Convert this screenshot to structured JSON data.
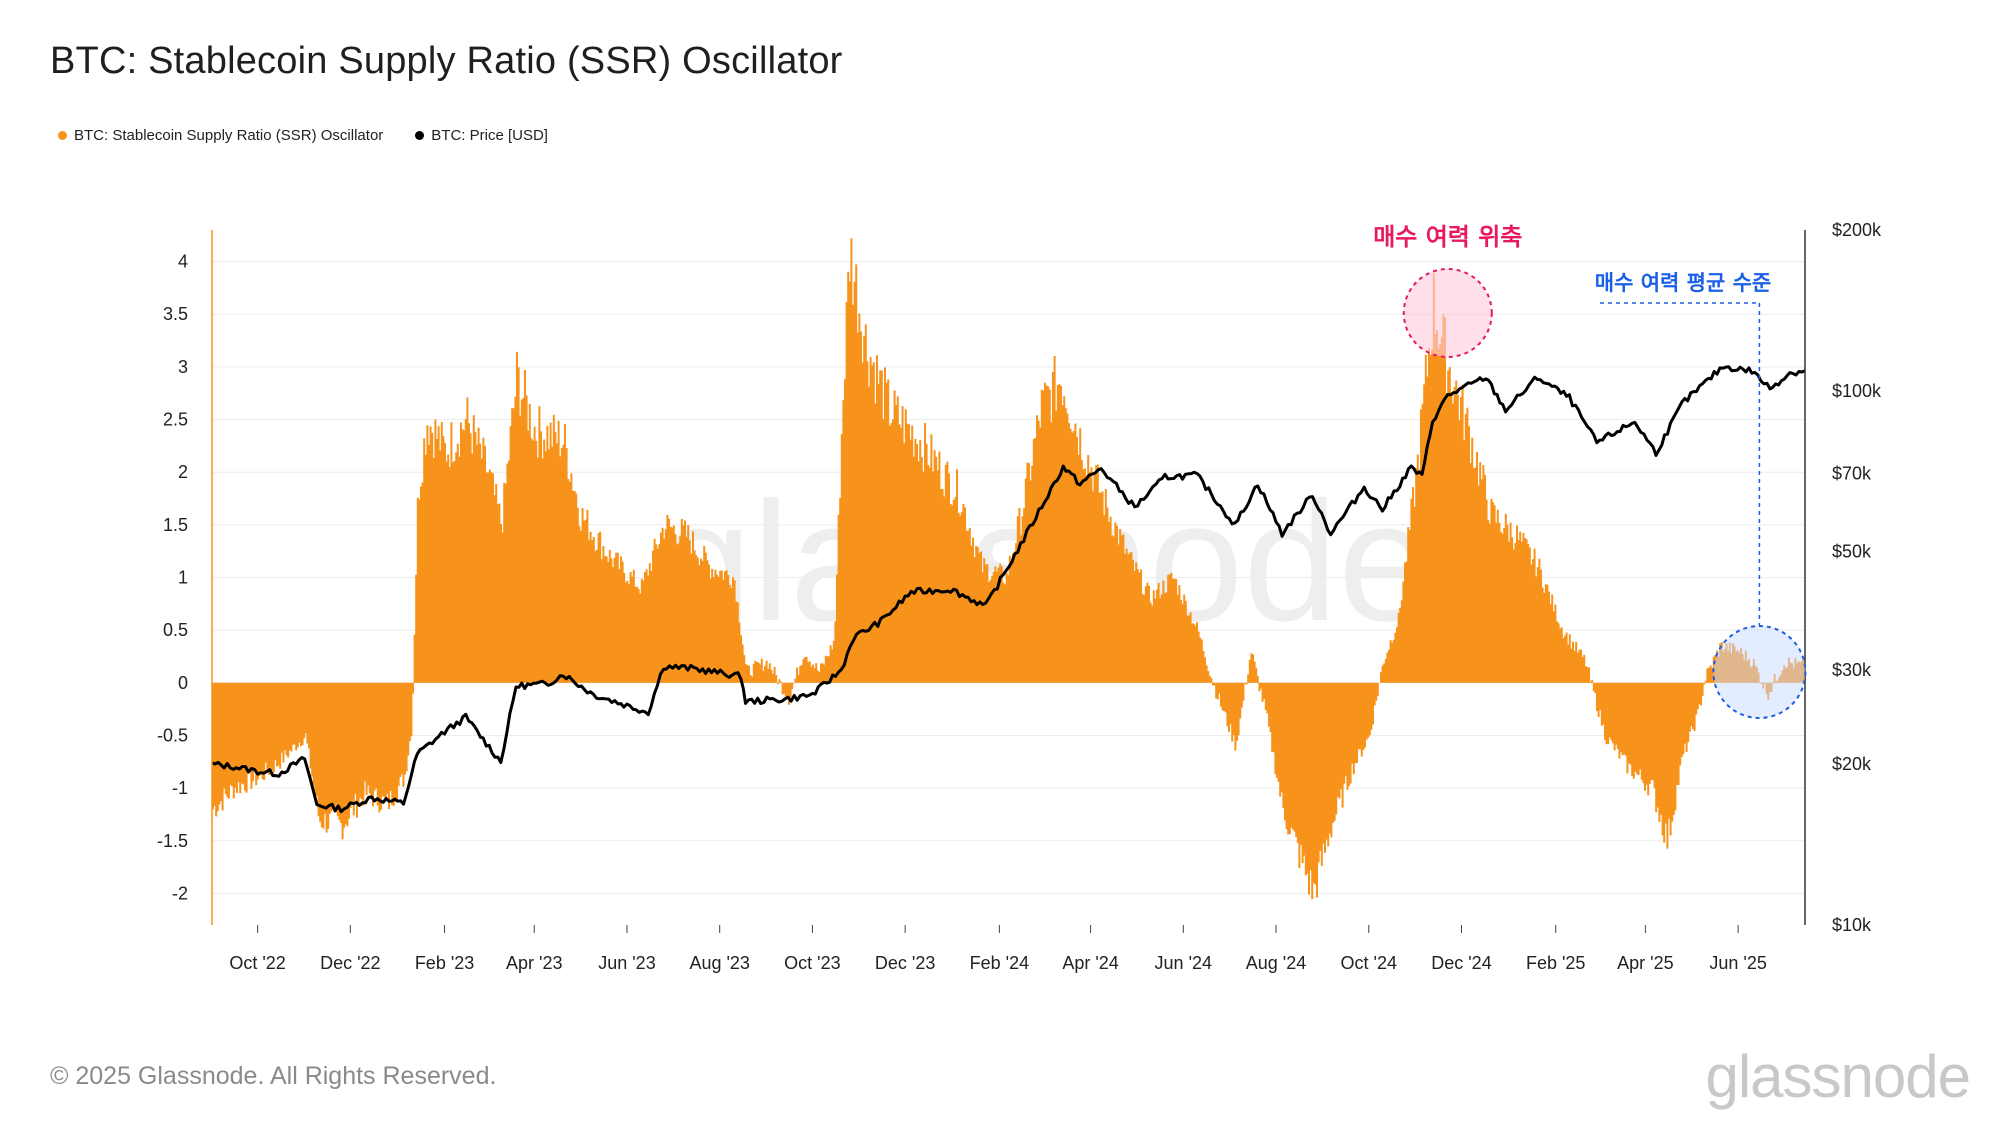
{
  "title": "BTC: Stablecoin Supply Ratio (SSR) Oscillator",
  "legend": [
    {
      "label": "BTC: Stablecoin Supply Ratio (SSR) Oscillator",
      "color": "#f7931a"
    },
    {
      "label": "BTC: Price [USD]",
      "color": "#000000"
    }
  ],
  "footer": "© 2025 Glassnode. All Rights Reserved.",
  "brand": "glassnode",
  "watermark": "glassnode",
  "chart_data": {
    "type": "area",
    "left_axis": {
      "ylim": [
        -2.3,
        4.3
      ],
      "ticks": [
        4,
        3.5,
        3,
        2.5,
        2,
        1.5,
        1,
        0.5,
        0,
        -0.5,
        -1,
        -1.5,
        -2
      ],
      "tick_labels": [
        "4",
        "3.5",
        "3",
        "2.5",
        "2",
        "1.5",
        "1",
        "0.5",
        "0",
        "-0.5",
        "-1",
        "-1.5",
        "-2"
      ]
    },
    "right_axis": {
      "scale": "log",
      "ylim": [
        10000,
        200000
      ],
      "ticks": [
        200000,
        100000,
        70000,
        50000,
        30000,
        20000,
        10000
      ],
      "tick_labels": [
        "$200k",
        "$100k",
        "$70k",
        "$50k",
        "$30k",
        "$20k",
        "$10k"
      ]
    },
    "x_axis": {
      "start": "2022-09-01",
      "end": "2025-07-15",
      "tick_labels": [
        "Oct '22",
        "Dec '22",
        "Feb '23",
        "Apr '23",
        "Jun '23",
        "Aug '23",
        "Oct '23",
        "Dec '23",
        "Feb '24",
        "Apr '24",
        "Jun '24",
        "Aug '24",
        "Oct '24",
        "Dec '24",
        "Feb '25",
        "Apr '25",
        "Jun '25"
      ]
    },
    "grid": true,
    "legend_position": "top-left",
    "series": [
      {
        "name": "BTC: Stablecoin Supply Ratio (SSR) Oscillator",
        "color": "#f7931a",
        "points": [
          [
            "2022-09-01",
            -1.2
          ],
          [
            "2022-09-15",
            -1.0
          ],
          [
            "2022-10-01",
            -0.9
          ],
          [
            "2022-10-15",
            -0.75
          ],
          [
            "2022-11-01",
            -0.5
          ],
          [
            "2022-11-10",
            -1.3
          ],
          [
            "2022-11-25",
            -1.35
          ],
          [
            "2022-12-10",
            -1.05
          ],
          [
            "2022-12-25",
            -1.15
          ],
          [
            "2023-01-05",
            -0.9
          ],
          [
            "2023-01-10",
            -0.4
          ],
          [
            "2023-01-14",
            1.8
          ],
          [
            "2023-01-20",
            2.5
          ],
          [
            "2023-02-01",
            2.2
          ],
          [
            "2023-02-15",
            2.5
          ],
          [
            "2023-03-01",
            2.0
          ],
          [
            "2023-03-10",
            1.5
          ],
          [
            "2023-03-20",
            2.9
          ],
          [
            "2023-04-01",
            2.4
          ],
          [
            "2023-04-20",
            2.3
          ],
          [
            "2023-05-01",
            1.6
          ],
          [
            "2023-05-20",
            1.2
          ],
          [
            "2023-06-10",
            0.9
          ],
          [
            "2023-06-25",
            1.5
          ],
          [
            "2023-07-10",
            1.4
          ],
          [
            "2023-07-25",
            1.1
          ],
          [
            "2023-08-10",
            1.0
          ],
          [
            "2023-08-18",
            0.1
          ],
          [
            "2023-09-01",
            0.2
          ],
          [
            "2023-09-15",
            -0.15
          ],
          [
            "2023-09-25",
            0.3
          ],
          [
            "2023-10-05",
            0.1
          ],
          [
            "2023-10-15",
            0.4
          ],
          [
            "2023-10-20",
            2.5
          ],
          [
            "2023-10-25",
            4.1
          ],
          [
            "2023-11-05",
            3.2
          ],
          [
            "2023-11-20",
            2.6
          ],
          [
            "2023-12-10",
            2.3
          ],
          [
            "2023-12-25",
            2.0
          ],
          [
            "2024-01-05",
            1.8
          ],
          [
            "2024-01-20",
            1.1
          ],
          [
            "2024-02-05",
            1.0
          ],
          [
            "2024-02-15",
            1.6
          ],
          [
            "2024-02-28",
            2.6
          ],
          [
            "2024-03-12",
            2.9
          ],
          [
            "2024-03-25",
            2.3
          ],
          [
            "2024-04-10",
            1.7
          ],
          [
            "2024-04-25",
            1.2
          ],
          [
            "2024-05-10",
            0.8
          ],
          [
            "2024-05-25",
            1.0
          ],
          [
            "2024-06-10",
            0.5
          ],
          [
            "2024-06-20",
            0.0
          ],
          [
            "2024-07-05",
            -0.6
          ],
          [
            "2024-07-15",
            0.3
          ],
          [
            "2024-07-25",
            -0.3
          ],
          [
            "2024-08-05",
            -1.2
          ],
          [
            "2024-08-15",
            -1.6
          ],
          [
            "2024-08-25",
            -2.0
          ],
          [
            "2024-09-05",
            -1.4
          ],
          [
            "2024-09-20",
            -0.8
          ],
          [
            "2024-10-01",
            -0.5
          ],
          [
            "2024-10-10",
            0.2
          ],
          [
            "2024-10-20",
            0.6
          ],
          [
            "2024-11-01",
            2.0
          ],
          [
            "2024-11-12",
            3.6
          ],
          [
            "2024-11-22",
            3.0
          ],
          [
            "2024-12-05",
            2.4
          ],
          [
            "2024-12-20",
            1.6
          ],
          [
            "2025-01-05",
            1.4
          ],
          [
            "2025-01-20",
            1.1
          ],
          [
            "2025-02-05",
            0.5
          ],
          [
            "2025-02-20",
            0.2
          ],
          [
            "2025-03-05",
            -0.5
          ],
          [
            "2025-03-20",
            -0.8
          ],
          [
            "2025-04-05",
            -1.0
          ],
          [
            "2025-04-15",
            -1.5
          ],
          [
            "2025-04-25",
            -0.7
          ],
          [
            "2025-05-05",
            -0.3
          ],
          [
            "2025-05-10",
            0.05
          ],
          [
            "2025-05-20",
            0.35
          ],
          [
            "2025-06-01",
            0.3
          ],
          [
            "2025-06-10",
            0.2
          ],
          [
            "2025-06-20",
            -0.1
          ],
          [
            "2025-07-01",
            0.2
          ],
          [
            "2025-07-15",
            0.15
          ]
        ]
      },
      {
        "name": "BTC: Price [USD]",
        "color": "#000000",
        "points": [
          [
            "2022-09-01",
            20000
          ],
          [
            "2022-09-15",
            19800
          ],
          [
            "2022-10-01",
            19400
          ],
          [
            "2022-10-15",
            19200
          ],
          [
            "2022-11-01",
            20500
          ],
          [
            "2022-11-09",
            16800
          ],
          [
            "2022-11-25",
            16500
          ],
          [
            "2022-12-15",
            17300
          ],
          [
            "2023-01-05",
            16900
          ],
          [
            "2023-01-14",
            20900
          ],
          [
            "2023-02-01",
            23000
          ],
          [
            "2023-02-15",
            24500
          ],
          [
            "2023-03-10",
            20200
          ],
          [
            "2023-03-20",
            28000
          ],
          [
            "2023-04-10",
            28300
          ],
          [
            "2023-04-20",
            29500
          ],
          [
            "2023-05-10",
            27000
          ],
          [
            "2023-06-15",
            25000
          ],
          [
            "2023-06-25",
            30500
          ],
          [
            "2023-07-15",
            30200
          ],
          [
            "2023-08-15",
            29200
          ],
          [
            "2023-08-18",
            26200
          ],
          [
            "2023-09-15",
            26500
          ],
          [
            "2023-10-01",
            27000
          ],
          [
            "2023-10-20",
            30000
          ],
          [
            "2023-10-28",
            34500
          ],
          [
            "2023-11-15",
            37000
          ],
          [
            "2023-12-05",
            42000
          ],
          [
            "2023-12-31",
            42500
          ],
          [
            "2024-01-23",
            39500
          ],
          [
            "2024-02-15",
            51500
          ],
          [
            "2024-03-14",
            72000
          ],
          [
            "2024-03-25",
            67000
          ],
          [
            "2024-04-08",
            71500
          ],
          [
            "2024-04-30",
            60500
          ],
          [
            "2024-05-20",
            69000
          ],
          [
            "2024-06-10",
            69500
          ],
          [
            "2024-07-05",
            56000
          ],
          [
            "2024-07-20",
            67000
          ],
          [
            "2024-08-05",
            54000
          ],
          [
            "2024-08-25",
            64000
          ],
          [
            "2024-09-06",
            54000
          ],
          [
            "2024-09-28",
            66000
          ],
          [
            "2024-10-10",
            60000
          ],
          [
            "2024-10-29",
            72000
          ],
          [
            "2024-11-05",
            69000
          ],
          [
            "2024-11-12",
            88000
          ],
          [
            "2024-11-22",
            98000
          ],
          [
            "2024-12-17",
            106000
          ],
          [
            "2024-12-30",
            92000
          ],
          [
            "2025-01-20",
            106000
          ],
          [
            "2025-02-10",
            97000
          ],
          [
            "2025-02-28",
            80000
          ],
          [
            "2025-03-25",
            87500
          ],
          [
            "2025-04-08",
            76500
          ],
          [
            "2025-04-25",
            94500
          ],
          [
            "2025-05-22",
            111000
          ],
          [
            "2025-06-10",
            109000
          ],
          [
            "2025-06-22",
            101000
          ],
          [
            "2025-07-05",
            108000
          ],
          [
            "2025-07-15",
            109000
          ]
        ]
      }
    ],
    "annotations": [
      {
        "text": "매수 여력 위축",
        "color": "#e8195e"
      },
      {
        "text": "매수 여력 평균 수준",
        "color": "#1a5fe8"
      }
    ]
  }
}
